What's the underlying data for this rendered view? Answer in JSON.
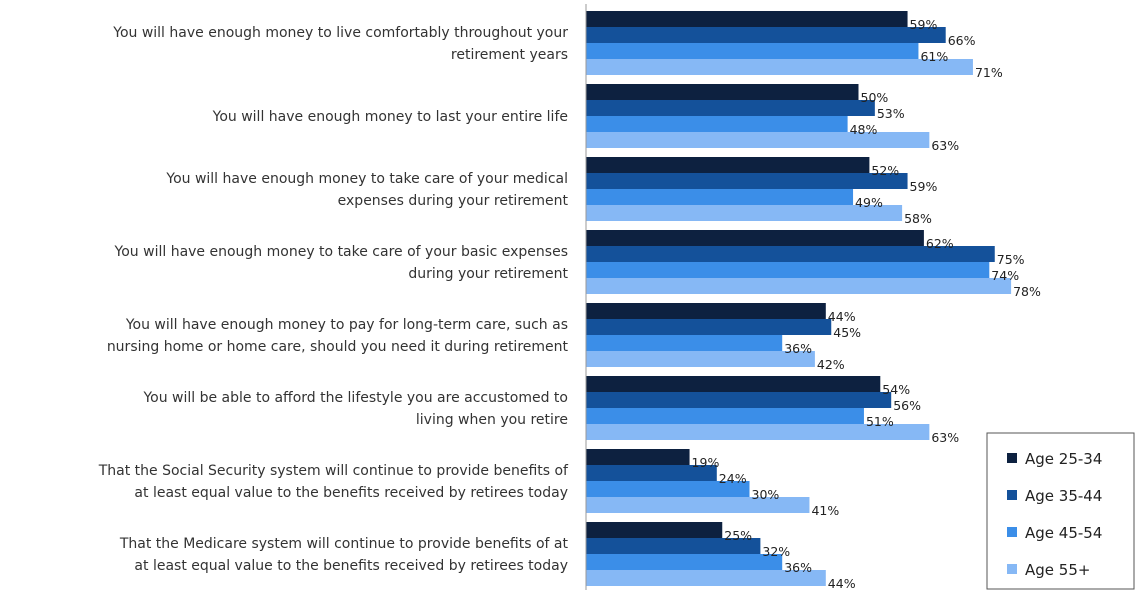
{
  "chart_data": {
    "type": "bar",
    "orientation": "horizontal",
    "value_suffix": "%",
    "xlim": [
      0,
      100
    ],
    "grid": false,
    "legend_position": "bottom-right",
    "categories": [
      [
        "You will have enough money to live comfortably throughout your",
        "retirement years"
      ],
      [
        "You will have enough money to last your entire life"
      ],
      [
        "You will have enough money to take care of your medical",
        "expenses during your retirement"
      ],
      [
        "You will have enough money to take care of your basic expenses",
        "during your retirement"
      ],
      [
        "You will have enough money to pay for long-term care, such as",
        "nursing home or home care, should you need it during retirement"
      ],
      [
        "You will be able to afford the lifestyle you are accustomed to",
        "living when you retire"
      ],
      [
        "That the Social Security system will continue to provide benefits of",
        "at least equal value to the benefits received by retirees today"
      ],
      [
        "That the Medicare system will continue to provide benefits of at",
        "at least equal value to the benefits received by retirees today"
      ]
    ],
    "series": [
      {
        "name": "Age 25-34",
        "color": "#0d2140",
        "values": [
          59,
          50,
          52,
          62,
          44,
          54,
          19,
          25
        ]
      },
      {
        "name": "Age 35-44",
        "color": "#14519a",
        "values": [
          66,
          53,
          59,
          75,
          45,
          56,
          24,
          32
        ]
      },
      {
        "name": "Age 45-54",
        "color": "#3b8ee8",
        "values": [
          61,
          48,
          49,
          74,
          36,
          51,
          30,
          36
        ]
      },
      {
        "name": "Age 55+",
        "color": "#86b8f5",
        "values": [
          71,
          63,
          58,
          78,
          42,
          63,
          41,
          44
        ]
      }
    ]
  }
}
